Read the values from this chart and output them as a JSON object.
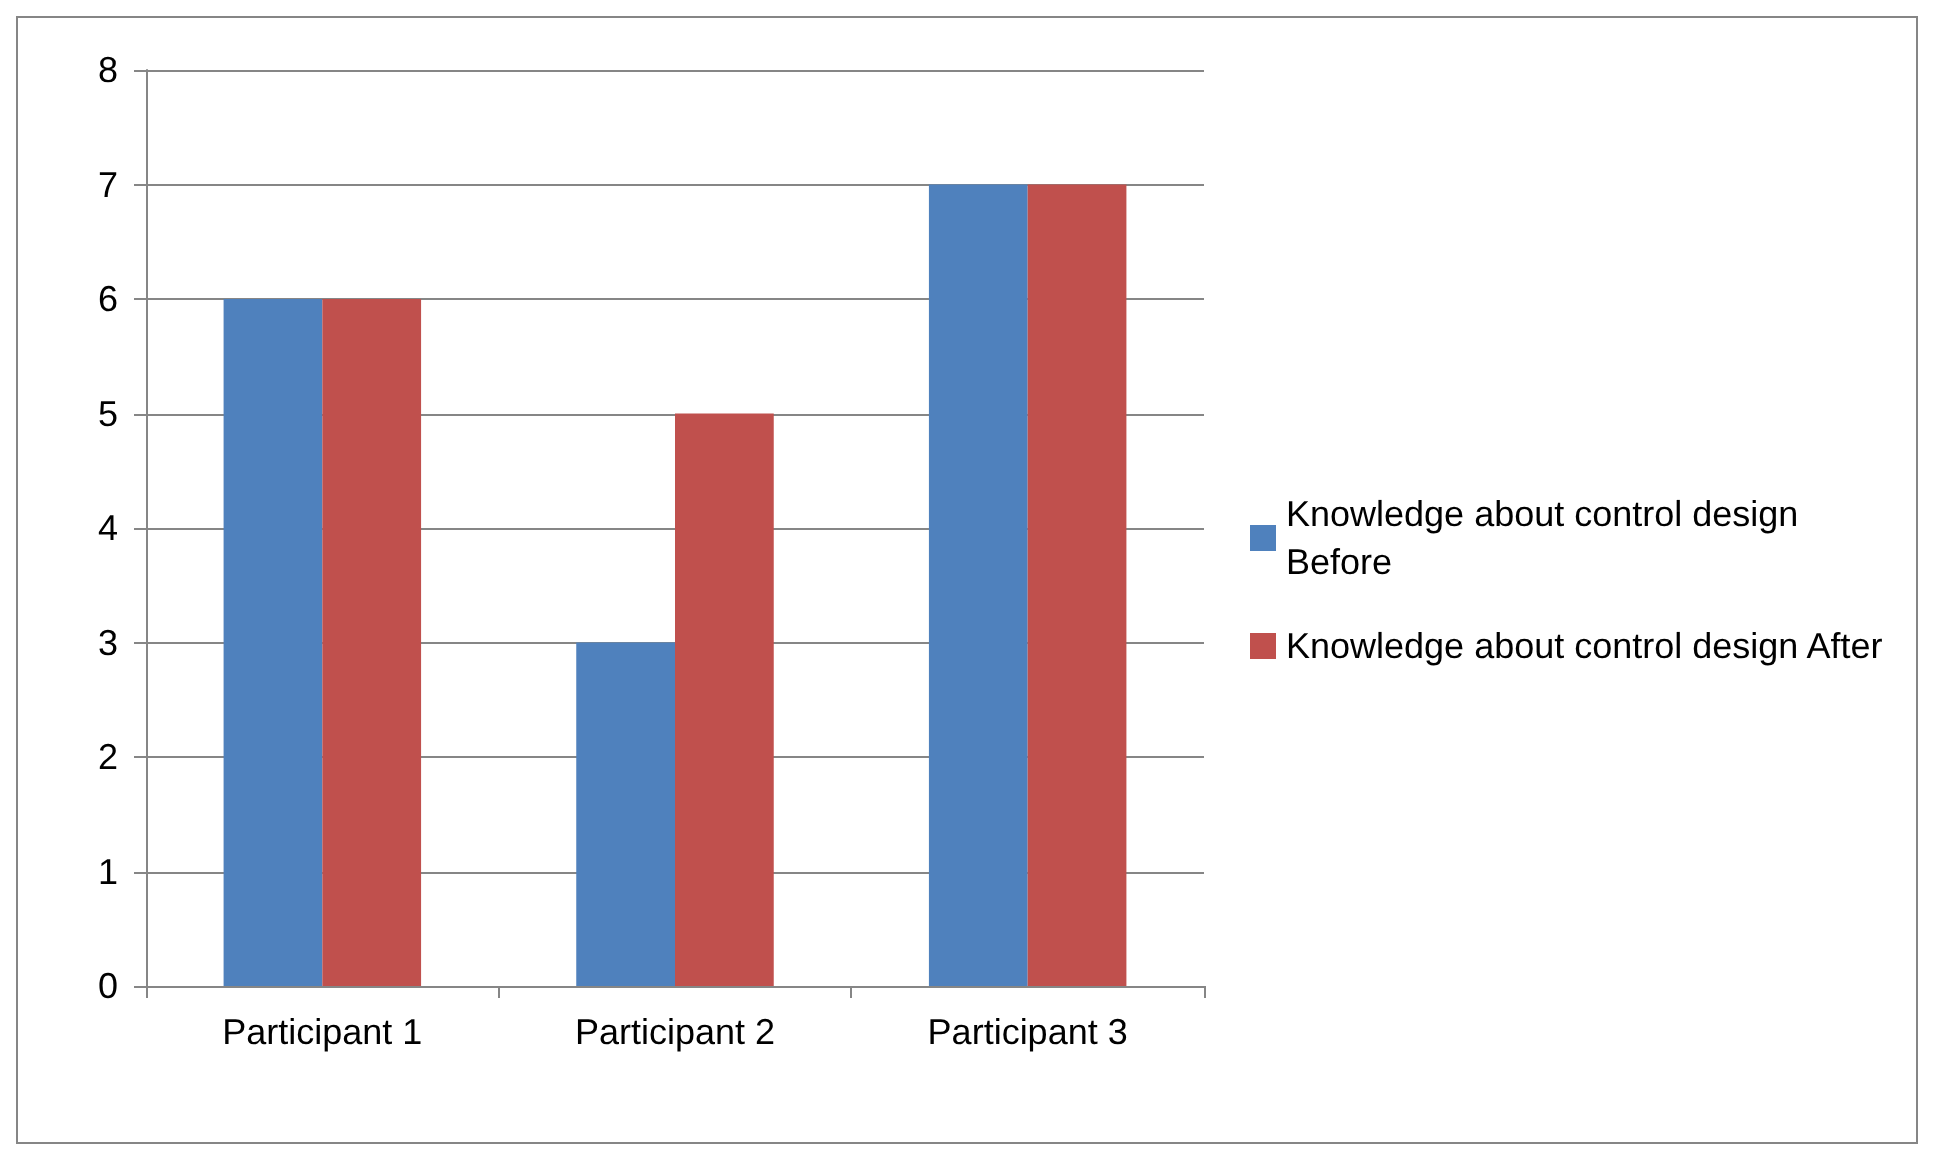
{
  "chart_data": {
    "type": "bar",
    "categories": [
      "Participant 1",
      "Participant 2",
      "Participant 3"
    ],
    "series": [
      {
        "name": "Knowledge about control design Before",
        "color": "#4f81bd",
        "values": [
          6,
          3,
          7
        ]
      },
      {
        "name": "Knowledge about control design After",
        "color": "#c0504d",
        "values": [
          6,
          5,
          7
        ]
      }
    ],
    "ylim": [
      0,
      8
    ],
    "yticks": [
      0,
      1,
      2,
      3,
      4,
      5,
      6,
      7,
      8
    ],
    "grid": "y",
    "legend": "right"
  }
}
